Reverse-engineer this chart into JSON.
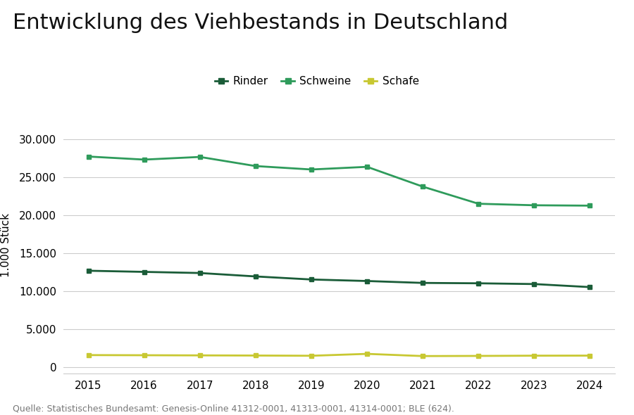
{
  "title": "Entwicklung des Viehbestands in Deutschland",
  "ylabel": "1.000 Stück",
  "source": "Quelle: Statistisches Bundesamt: Genesis-Online 41312-0001, 41313-0001, 41314-0001; BLE (624).",
  "years": [
    2015,
    2016,
    2017,
    2018,
    2019,
    2020,
    2021,
    2022,
    2023,
    2024
  ],
  "rinder": [
    12700,
    12550,
    12400,
    11950,
    11550,
    11350,
    11100,
    11050,
    10950,
    10550
  ],
  "schweine": [
    27700,
    27300,
    27650,
    26450,
    26000,
    26350,
    23750,
    21500,
    21300,
    21250
  ],
  "schafe": [
    1620,
    1600,
    1580,
    1560,
    1530,
    1780,
    1490,
    1510,
    1540,
    1550
  ],
  "color_rinder": "#1a5c38",
  "color_schweine": "#2e9b5b",
  "color_schafe": "#c8c832",
  "background_color": "#ffffff",
  "grid_color": "#cccccc",
  "ylim": [
    -800,
    33000
  ],
  "yticks": [
    0,
    5000,
    10000,
    15000,
    20000,
    25000,
    30000
  ],
  "title_fontsize": 22,
  "label_fontsize": 11,
  "tick_fontsize": 11,
  "source_fontsize": 9
}
